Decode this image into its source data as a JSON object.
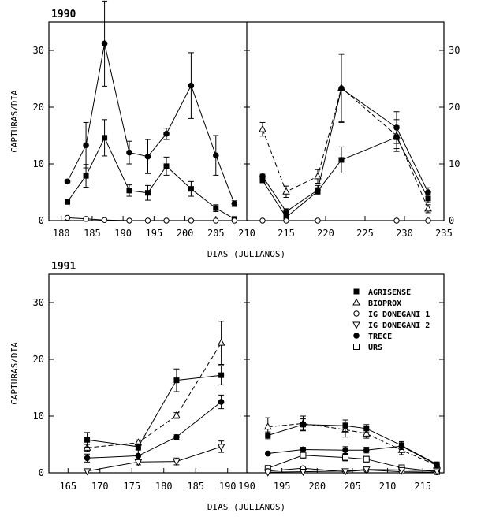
{
  "chart_data": [
    {
      "type": "line",
      "title": "1990",
      "xlabel": "DIAS (JULIANOS)",
      "ylabel": "CAPTURAS/DIA",
      "ylim": [
        0,
        35
      ],
      "yticks": [
        0,
        10,
        20,
        30
      ],
      "y_right_ticks": true,
      "panels": [
        {
          "xlim": [
            178,
            210
          ],
          "xticks": [
            180,
            185,
            190,
            195,
            200,
            205
          ],
          "series": [
            {
              "name": "TRECE",
              "marker": "filled-circle",
              "dash": false,
              "x": [
                181,
                184,
                187,
                191,
                194,
                197,
                201,
                205,
                208
              ],
              "y": [
                6.9,
                13.3,
                31.2,
                12.0,
                11.3,
                15.3,
                23.8,
                11.5,
                3.0
              ],
              "err": [
                0,
                4.0,
                7.5,
                2.0,
                3.0,
                1.0,
                5.8,
                3.5,
                0.5
              ]
            },
            {
              "name": "AGRISENSE",
              "marker": "filled-square",
              "dash": false,
              "x": [
                181,
                184,
                187,
                191,
                194,
                197,
                201,
                205,
                208
              ],
              "y": [
                3.3,
                7.9,
                14.6,
                5.3,
                4.9,
                9.6,
                5.6,
                2.2,
                0.3
              ],
              "err": [
                0,
                2.0,
                3.2,
                1.0,
                1.3,
                1.6,
                1.3,
                0.6,
                0.2
              ]
            },
            {
              "name": "IG DONEGANI 1",
              "marker": "open-circle",
              "dash": false,
              "x": [
                181,
                184,
                187,
                191,
                194,
                197,
                201,
                205,
                208
              ],
              "y": [
                0.5,
                0.3,
                0.1,
                0,
                0,
                0,
                0,
                0,
                0
              ],
              "err": [
                0,
                0,
                0,
                0,
                0,
                0,
                0,
                0,
                0
              ]
            }
          ]
        },
        {
          "xlim": [
            210,
            235
          ],
          "xticks": [
            210,
            215,
            220,
            225,
            230,
            235
          ],
          "series": [
            {
              "name": "BIOPROX",
              "marker": "open-triangle-up",
              "dash": true,
              "x": [
                212,
                215,
                219,
                222,
                229,
                233
              ],
              "y": [
                16.1,
                5.1,
                7.8,
                23.4,
                15.0,
                2.1
              ],
              "err": [
                1.2,
                1.0,
                1.2,
                6.0,
                2.8,
                0.7
              ]
            },
            {
              "name": "TRECE",
              "marker": "filled-circle",
              "dash": false,
              "x": [
                212,
                215,
                219,
                222,
                229,
                233
              ],
              "y": [
                7.8,
                1.6,
                5.4,
                23.3,
                16.4,
                5.0
              ],
              "err": [
                0.4,
                0.5,
                0.8,
                6.0,
                2.8,
                0.8
              ]
            },
            {
              "name": "AGRISENSE",
              "marker": "filled-square",
              "dash": false,
              "x": [
                212,
                215,
                219,
                222,
                229,
                233
              ],
              "y": [
                7.1,
                0.6,
                5.2,
                10.7,
                14.7,
                3.9
              ],
              "err": [
                0.4,
                0.4,
                0.6,
                2.3,
                2.0,
                0.7
              ]
            },
            {
              "name": "IG DONEGANI 1",
              "marker": "open-circle",
              "dash": false,
              "x": [
                212,
                215,
                219,
                229,
                233
              ],
              "y": [
                0,
                0,
                0,
                0,
                0
              ],
              "err": [
                0,
                0,
                0,
                0,
                0
              ]
            }
          ]
        }
      ]
    },
    {
      "type": "line",
      "title": "1991",
      "xlabel": "DIAS (JULIANOS)",
      "ylabel": "CAPTURAS/DIA",
      "ylim": [
        0,
        35
      ],
      "yticks": [
        0,
        10,
        20,
        30
      ],
      "y_right_ticks": false,
      "legend": {
        "position": "top-right",
        "entries": [
          {
            "name": "AGRISENSE",
            "marker": "filled-square"
          },
          {
            "name": "BIOPROX",
            "marker": "open-triangle-up"
          },
          {
            "name": "IG DONEGANI 1",
            "marker": "open-circle"
          },
          {
            "name": "IG DONEGANI 2",
            "marker": "open-triangle-down"
          },
          {
            "name": "TRECE",
            "marker": "filled-circle"
          },
          {
            "name": "URS",
            "marker": "open-square"
          }
        ]
      },
      "panels": [
        {
          "xlim": [
            162,
            193
          ],
          "xticks": [
            165,
            170,
            175,
            180,
            185,
            190
          ],
          "series": [
            {
              "name": "BIOPROX",
              "marker": "open-triangle-up",
              "dash": true,
              "x": [
                168,
                176,
                182,
                189
              ],
              "y": [
                4.4,
                5.3,
                10.1,
                22.9
              ],
              "err": [
                0.6,
                0.5,
                0.5,
                3.8
              ]
            },
            {
              "name": "AGRISENSE",
              "marker": "filled-square",
              "dash": false,
              "x": [
                168,
                176,
                182,
                189
              ],
              "y": [
                5.8,
                4.6,
                16.3,
                17.2
              ],
              "err": [
                1.3,
                0.5,
                2.0,
                1.7
              ]
            },
            {
              "name": "TRECE",
              "marker": "filled-circle",
              "dash": false,
              "x": [
                168,
                176,
                182,
                189
              ],
              "y": [
                2.6,
                3.0,
                6.3,
                12.5
              ],
              "err": [
                0.7,
                1.0,
                0.4,
                1.2
              ]
            },
            {
              "name": "IG DONEGANI 2",
              "marker": "open-triangle-down",
              "dash": false,
              "x": [
                168,
                176,
                182,
                189
              ],
              "y": [
                0.3,
                1.9,
                2.0,
                4.6
              ],
              "err": [
                0,
                0.5,
                0.6,
                1.0
              ]
            }
          ]
        },
        {
          "xlim": [
            190,
            218
          ],
          "xticks": [
            190,
            195,
            200,
            205,
            210,
            215
          ],
          "series": [
            {
              "name": "BIOPROX",
              "marker": "open-triangle-up",
              "dash": true,
              "x": [
                193,
                198,
                204,
                207,
                212,
                217
              ],
              "y": [
                8.1,
                8.7,
                7.6,
                6.9,
                4.0,
                1.3
              ],
              "err": [
                1.6,
                1.3,
                1.3,
                0.8,
                0.8,
                0.4
              ]
            },
            {
              "name": "AGRISENSE",
              "marker": "filled-square",
              "dash": false,
              "x": [
                193,
                198,
                204,
                207,
                212,
                217
              ],
              "y": [
                6.6,
                8.5,
                8.3,
                7.8,
                4.8,
                1.5
              ],
              "err": [
                0.6,
                1.0,
                1.0,
                0.7,
                0.7,
                0.3
              ]
            },
            {
              "name": "TRECE",
              "marker": "filled-circle",
              "dash": false,
              "x": [
                193,
                198,
                204,
                207,
                212,
                217
              ],
              "y": [
                3.4,
                4.1,
                4.0,
                4.0,
                4.7,
                1.4
              ],
              "err": [
                0,
                0.4,
                0.6,
                0.5,
                0.6,
                0.3
              ]
            },
            {
              "name": "URS",
              "marker": "open-square",
              "dash": false,
              "x": [
                193,
                198,
                204,
                207,
                212,
                217
              ],
              "y": [
                0.8,
                3.1,
                2.7,
                2.4,
                0.9,
                0.2
              ],
              "err": [
                0.3,
                0.5,
                0.6,
                0.5,
                0.4,
                0.1
              ]
            },
            {
              "name": "IG DONEGANI 1",
              "marker": "open-circle",
              "dash": false,
              "x": [
                193,
                198,
                204,
                207,
                212,
                217
              ],
              "y": [
                0.3,
                0.8,
                0.2,
                0.5,
                0.2,
                0.1
              ],
              "err": [
                0,
                0,
                0,
                0,
                0,
                0
              ]
            },
            {
              "name": "IG DONEGANI 2",
              "marker": "open-triangle-down",
              "dash": false,
              "x": [
                193,
                198,
                204,
                207,
                212,
                217
              ],
              "y": [
                0.1,
                0.2,
                0.3,
                0.6,
                0.5,
                0.3
              ],
              "err": [
                0,
                0,
                0,
                0,
                0,
                0
              ]
            }
          ]
        }
      ]
    }
  ]
}
